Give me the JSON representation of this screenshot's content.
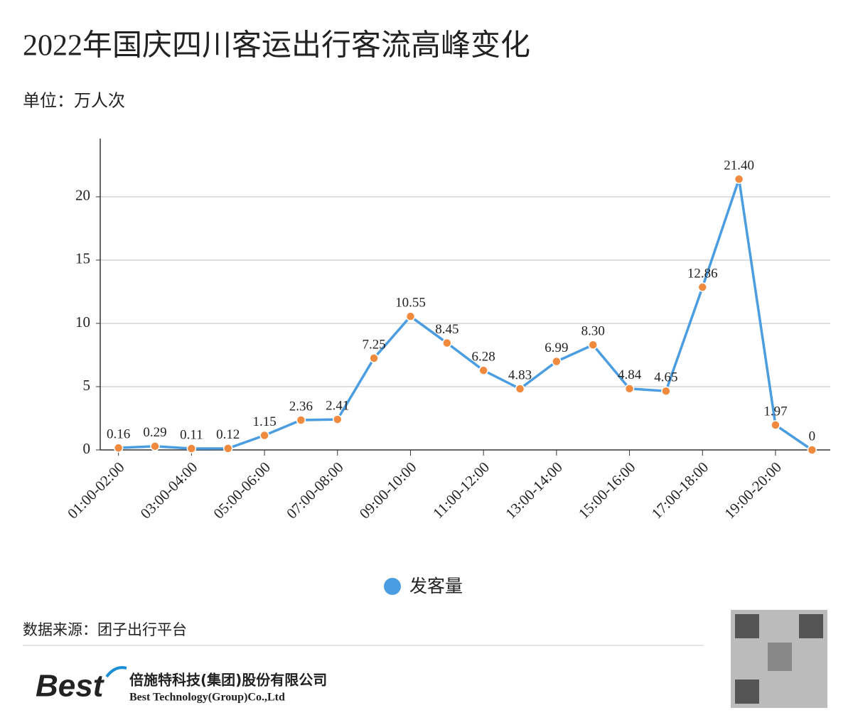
{
  "chart_data": {
    "type": "line",
    "title": "2022年国庆四川客运出行客流高峰变化",
    "subtitle": "单位：万人次",
    "categories": [
      "01:00-02:00",
      null,
      "03:00-04:00",
      null,
      "05:00-06:00",
      null,
      "07:00-08:00",
      null,
      "09:00-10:00",
      null,
      "11:00-12:00",
      null,
      "13:00-14:00",
      null,
      "15:00-16:00",
      null,
      "17:00-18:00",
      null,
      "19:00-20:00",
      null
    ],
    "series": [
      {
        "name": "发客量",
        "color": "#4a9de0",
        "marker_color": "#f08a3e",
        "values": [
          0.16,
          0.29,
          0.11,
          0.12,
          1.15,
          2.36,
          2.41,
          7.25,
          10.55,
          8.45,
          6.28,
          4.83,
          6.99,
          8.3,
          4.84,
          4.65,
          12.86,
          21.4,
          1.97,
          0
        ],
        "value_labels": [
          "0.16",
          "0.29",
          "0.11",
          "0.12",
          "1.15",
          "2.36",
          "2.41",
          "7.25",
          "10.55",
          "8.45",
          "6.28",
          "4.83",
          "6.99",
          "8.30",
          "4.84",
          "4.65",
          "12.86",
          "21.40",
          "1.97",
          "0"
        ]
      }
    ],
    "ylim": [
      0,
      24.6
    ],
    "yticks": [
      0,
      5,
      10,
      15,
      20
    ],
    "grid": true,
    "source": "数据来源：团子出行平台",
    "logo": "Best",
    "company_cn": "倍施特科技(集团)股份有限公司",
    "company_en": "Best Technology(Group)Co.,Ltd"
  }
}
